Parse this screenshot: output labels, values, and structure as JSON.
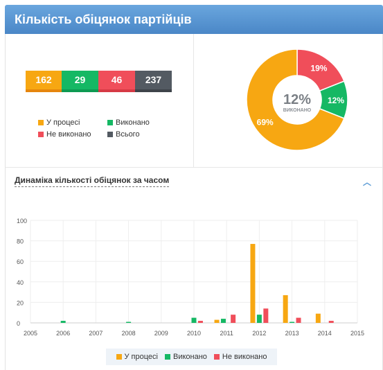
{
  "header": {
    "title": "Кількість обіцянок партійців"
  },
  "stats": [
    {
      "value": "162",
      "color": "#f7a712",
      "underline": "#e6860d"
    },
    {
      "value": "29",
      "color": "#15b864",
      "underline": "#0d9a52"
    },
    {
      "value": "46",
      "color": "#f04e5a",
      "underline": "#d63a45"
    },
    {
      "value": "237",
      "color": "#535a62",
      "underline": "#3e444a"
    }
  ],
  "legend_top": [
    {
      "label": "У процесі",
      "color": "#f7a712"
    },
    {
      "label": "Виконано",
      "color": "#15b864"
    },
    {
      "label": "Не виконано",
      "color": "#f04e5a"
    },
    {
      "label": "Всього",
      "color": "#535a62"
    }
  ],
  "donut": {
    "center_value": "12%",
    "center_label": "ВИКОНАНО",
    "slices": [
      {
        "label": "69%",
        "value": 69,
        "color": "#f7a712"
      },
      {
        "label": "19%",
        "value": 19,
        "color": "#f04e5a"
      },
      {
        "label": "12%",
        "value": 12,
        "color": "#15b864"
      }
    ]
  },
  "section": {
    "title": "Динаміка кількості обіцянок за часом",
    "chevron": "chevron-up-icon"
  },
  "chart_data": {
    "type": "bar",
    "x": [
      "2005",
      "2006",
      "2007",
      "2008",
      "2009",
      "2010",
      "2011",
      "2012",
      "2013",
      "2014",
      "2015"
    ],
    "ylim": [
      0,
      100
    ],
    "yticks": [
      "0",
      "20",
      "40",
      "60",
      "80",
      "100"
    ],
    "series": [
      {
        "name": "У процесі",
        "color": "#f7a712",
        "points": [
          [
            2010.7,
            3
          ],
          [
            2011.8,
            77
          ],
          [
            2012.8,
            27
          ],
          [
            2013.8,
            9
          ]
        ]
      },
      {
        "name": "Виконано",
        "color": "#15b864",
        "points": [
          [
            2006.0,
            2
          ],
          [
            2008.0,
            1
          ],
          [
            2010.0,
            5
          ],
          [
            2010.9,
            4
          ],
          [
            2012.0,
            8
          ],
          [
            2013.0,
            1
          ]
        ]
      },
      {
        "name": "Не виконано",
        "color": "#f04e5a",
        "points": [
          [
            2010.2,
            2
          ],
          [
            2011.2,
            8
          ],
          [
            2012.2,
            14
          ],
          [
            2013.2,
            5
          ],
          [
            2014.2,
            2
          ]
        ]
      }
    ]
  }
}
